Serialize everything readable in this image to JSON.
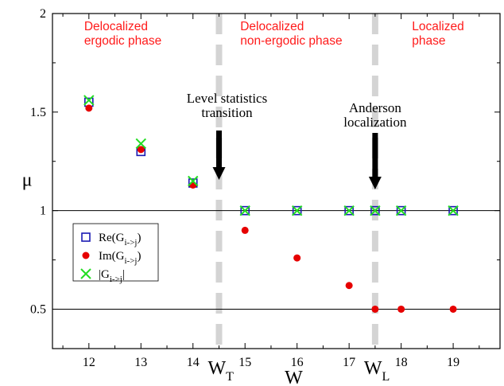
{
  "chart_data": {
    "type": "scatter",
    "xlabel": "W",
    "ylabel": "μ",
    "xlim": [
      11.3,
      19.9
    ],
    "ylim": [
      0.3,
      2.0
    ],
    "x_ticks": [
      "12",
      "13",
      "14",
      "15",
      "16",
      "17",
      "18",
      "19"
    ],
    "y_ticks": [
      "0.5",
      "1",
      "1.5",
      "2"
    ],
    "grid": false,
    "legend_position": "lower-left",
    "reference_lines_y": [
      1.0,
      0.5
    ],
    "transitions": [
      {
        "x": 14.5,
        "label": "W",
        "subscript": "T",
        "annotation": [
          "Level statistics",
          "transition"
        ]
      },
      {
        "x": 17.5,
        "label": "W",
        "subscript": "L",
        "annotation": [
          "Anderson",
          "localization"
        ]
      }
    ],
    "phases": [
      {
        "lines": [
          "Delocalized",
          "ergodic phase"
        ],
        "x": 12.0
      },
      {
        "lines": [
          "Delocalized",
          "non-ergodic phase"
        ],
        "x": 15.0
      },
      {
        "lines": [
          "Localized",
          "phase"
        ],
        "x": 18.3
      }
    ],
    "series": [
      {
        "name": "Re(G",
        "name_sub": "i->j",
        "name_close": ")",
        "marker": "square",
        "color": "#1a1ab3",
        "points": [
          [
            12,
            1.55
          ],
          [
            13,
            1.3
          ],
          [
            14,
            1.14
          ],
          [
            15,
            1.0
          ],
          [
            16,
            1.0
          ],
          [
            17,
            1.0
          ],
          [
            17.5,
            1.0
          ],
          [
            18,
            1.0
          ],
          [
            19,
            1.0
          ]
        ]
      },
      {
        "name": "Im(G",
        "name_sub": "i->j",
        "name_close": ")",
        "marker": "circle",
        "color": "#e60000",
        "points": [
          [
            12,
            1.52
          ],
          [
            13,
            1.31
          ],
          [
            14,
            1.13
          ],
          [
            15,
            0.9
          ],
          [
            16,
            0.76
          ],
          [
            17,
            0.62
          ],
          [
            17.5,
            0.5
          ],
          [
            18,
            0.5
          ],
          [
            19,
            0.5
          ]
        ]
      },
      {
        "name": "|G",
        "name_sub": "i->j",
        "name_close": "|",
        "marker": "x",
        "color": "#22dd22",
        "points": [
          [
            12,
            1.56
          ],
          [
            13,
            1.34
          ],
          [
            14,
            1.15
          ],
          [
            15,
            1.0
          ],
          [
            16,
            1.0
          ],
          [
            17,
            1.0
          ],
          [
            17.5,
            1.0
          ],
          [
            18,
            1.0
          ],
          [
            19,
            1.0
          ]
        ]
      }
    ]
  }
}
